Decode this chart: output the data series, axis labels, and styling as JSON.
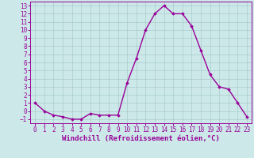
{
  "x": [
    0,
    1,
    2,
    3,
    4,
    5,
    6,
    7,
    8,
    9,
    10,
    11,
    12,
    13,
    14,
    15,
    16,
    17,
    18,
    19,
    20,
    21,
    22,
    23
  ],
  "y": [
    1,
    0,
    -0.5,
    -0.7,
    -1,
    -1,
    -0.3,
    -0.5,
    -0.5,
    -0.5,
    3.5,
    6.5,
    10,
    12,
    13,
    12,
    12,
    10.5,
    7.5,
    4.5,
    3,
    2.7,
    1,
    -0.7
  ],
  "line_color": "#990099",
  "marker": "D",
  "marker_size": 1.8,
  "bg_color": "#cce8e8",
  "grid_color": "#aacccc",
  "xlabel": "Windchill (Refroidissement éolien,°C)",
  "xlim": [
    -0.5,
    23.5
  ],
  "ylim": [
    -1.5,
    13.5
  ],
  "yticks": [
    -1,
    0,
    1,
    2,
    3,
    4,
    5,
    6,
    7,
    8,
    9,
    10,
    11,
    12,
    13
  ],
  "xticks": [
    0,
    1,
    2,
    3,
    4,
    5,
    6,
    7,
    8,
    9,
    10,
    11,
    12,
    13,
    14,
    15,
    16,
    17,
    18,
    19,
    20,
    21,
    22,
    23
  ],
  "tick_fontsize": 5.5,
  "xlabel_fontsize": 6.5,
  "line_width": 1.0
}
